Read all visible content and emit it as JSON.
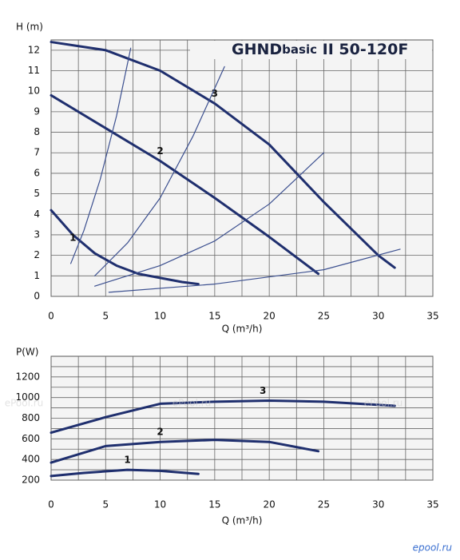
{
  "chart_data": [
    {
      "type": "line",
      "title_parts": [
        "GHND",
        "basic",
        "II",
        "50-120F"
      ],
      "ylabel": "H (m)",
      "xlabel": "Q (m³/h)",
      "xlim": [
        0,
        35
      ],
      "xticks": [
        0,
        5,
        10,
        15,
        20,
        25,
        30,
        35
      ],
      "xminor": [
        2.5,
        7.5,
        12.5,
        17.5,
        22.5,
        27.5,
        32.5
      ],
      "ylim": [
        0,
        12.5
      ],
      "yticks": [
        0,
        1,
        2,
        3,
        4,
        5,
        6,
        7,
        8,
        9,
        10,
        11,
        12
      ],
      "grid": true,
      "series": [
        {
          "name": "1",
          "color": "#1f2f6e",
          "x": [
            0,
            2,
            4,
            6,
            8,
            10,
            12,
            13.5
          ],
          "values": [
            4.2,
            3.0,
            2.1,
            1.5,
            1.1,
            0.9,
            0.7,
            0.6
          ]
        },
        {
          "name": "2",
          "color": "#1f2f6e",
          "x": [
            0,
            5,
            10,
            15,
            20,
            24.5
          ],
          "values": [
            9.8,
            8.2,
            6.6,
            4.8,
            2.9,
            1.1
          ]
        },
        {
          "name": "3",
          "color": "#1f2f6e",
          "x": [
            0,
            5,
            10,
            15,
            20,
            25,
            30,
            31.5
          ],
          "values": [
            12.4,
            12.0,
            11.0,
            9.4,
            7.4,
            4.6,
            2.0,
            1.4
          ]
        },
        {
          "color": "#3b4f8f",
          "x": [
            1.8,
            3,
            4.5,
            6,
            7.3
          ],
          "values": [
            1.6,
            3.2,
            5.7,
            8.8,
            12.1
          ]
        },
        {
          "color": "#3b4f8f",
          "x": [
            4,
            7,
            10,
            13,
            15.9
          ],
          "values": [
            1.0,
            2.6,
            4.8,
            7.8,
            11.2
          ]
        },
        {
          "color": "#3b4f8f",
          "x": [
            4,
            10,
            15,
            20,
            25
          ],
          "values": [
            0.5,
            1.5,
            2.7,
            4.5,
            7.0
          ]
        },
        {
          "color": "#3b4f8f",
          "x": [
            5.3,
            15,
            25,
            32
          ],
          "values": [
            0.2,
            0.6,
            1.3,
            2.3
          ]
        }
      ]
    },
    {
      "type": "line",
      "ylabel": "P(W)",
      "xlabel": "Q (m³/h)",
      "xlim": [
        0,
        35
      ],
      "xticks": [
        0,
        5,
        10,
        15,
        20,
        25,
        30,
        35
      ],
      "xminor": [
        2.5,
        7.5,
        12.5,
        17.5,
        22.5,
        27.5,
        32.5
      ],
      "ylim": [
        200,
        1400
      ],
      "yticks": [
        200,
        400,
        600,
        800,
        1000,
        1200
      ],
      "yminor": [
        300,
        500,
        700,
        900,
        1100,
        1300
      ],
      "grid": true,
      "series": [
        {
          "name": "1",
          "color": "#1f2f6e",
          "x": [
            0,
            3,
            7,
            10,
            13.5
          ],
          "values": [
            240,
            270,
            300,
            290,
            260
          ]
        },
        {
          "name": "2",
          "color": "#1f2f6e",
          "x": [
            0,
            5,
            10,
            15,
            20,
            24.5
          ],
          "values": [
            370,
            530,
            570,
            590,
            570,
            480
          ]
        },
        {
          "name": "3",
          "color": "#1f2f6e",
          "x": [
            0,
            5,
            10,
            15,
            20,
            25,
            31.5
          ],
          "values": [
            660,
            810,
            940,
            960,
            970,
            960,
            920
          ]
        }
      ]
    }
  ],
  "watermark": "ePool.ru",
  "footer": "epool.ru"
}
